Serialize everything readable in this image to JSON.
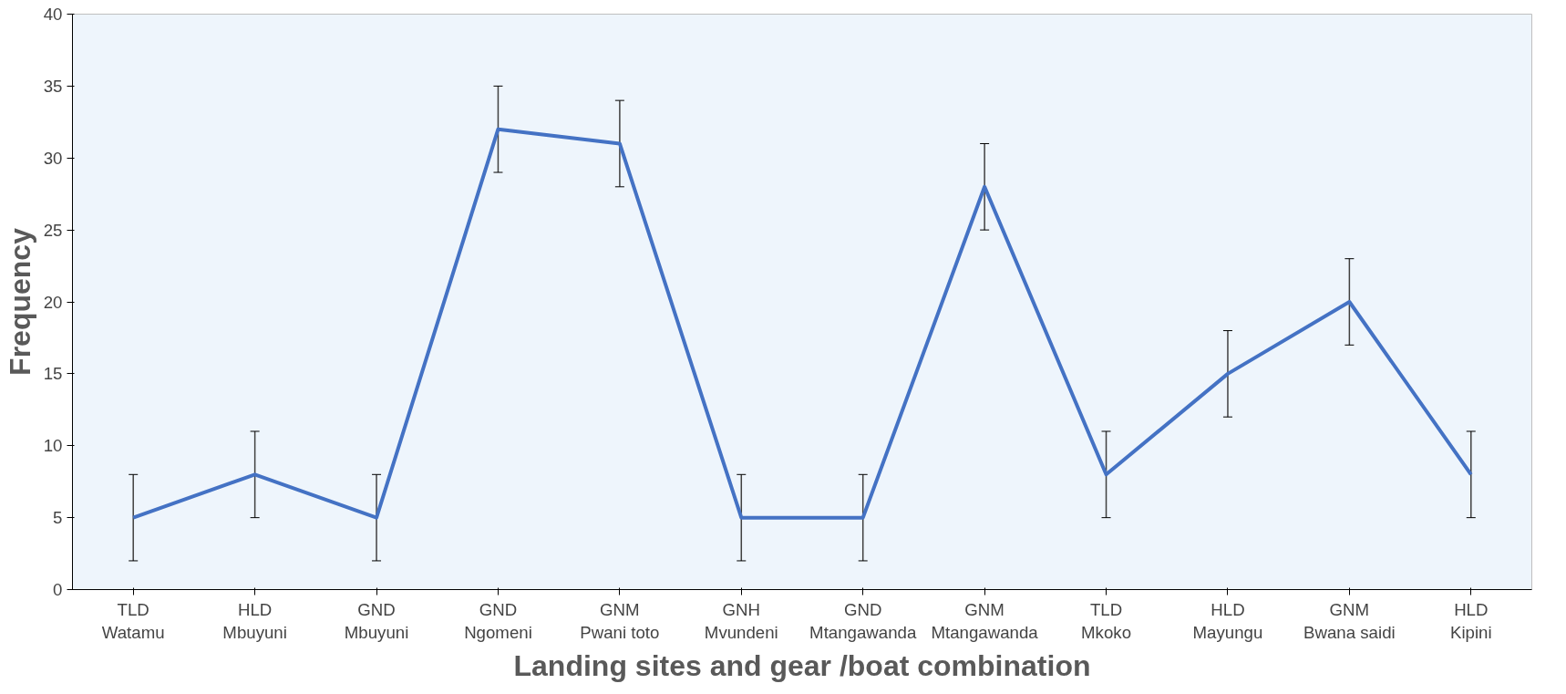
{
  "chart_data": {
    "type": "line",
    "xlabel": "Landing sites and gear /boat combination",
    "ylabel": "Frequency",
    "categories": [
      "TLD\nWatamu",
      "HLD\nMbuyuni",
      "GND\nMbuyuni",
      "GND\nNgomeni",
      "GNM\nPwani toto",
      "GNH\nMvundeni",
      "GND\nMtangawanda",
      "GNM\nMtangawanda",
      "TLD\nMkoko",
      "HLD\nMayungu",
      "GNM\nBwana saidi",
      "HLD\nKipini"
    ],
    "series": [
      {
        "color": "#4472c4",
        "values": [
          5,
          8,
          5,
          32,
          31,
          5,
          5,
          28,
          8,
          15,
          20,
          8
        ],
        "errors": [
          3,
          3,
          3,
          3,
          3,
          3,
          3,
          3,
          3,
          3,
          3,
          3
        ]
      }
    ],
    "ylim": [
      0,
      40
    ],
    "yticks": [
      0,
      5,
      10,
      15,
      20,
      25,
      30,
      35,
      40
    ],
    "grid": false,
    "marker": "none",
    "line_style": "solid"
  }
}
